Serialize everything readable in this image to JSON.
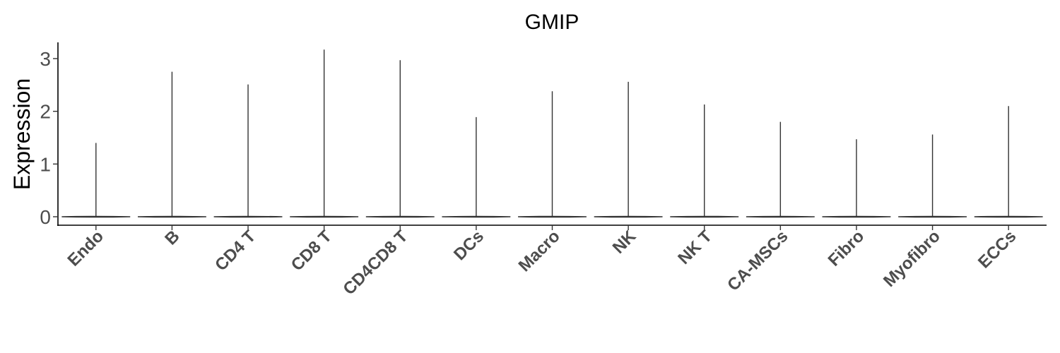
{
  "chart_data": {
    "type": "violin",
    "title": "GMIP",
    "xlabel": "",
    "ylabel": "Expression",
    "ylim": [
      -0.15,
      3.3
    ],
    "yticks": [
      0,
      1,
      2,
      3
    ],
    "categories": [
      "Endo",
      "B",
      "CD4 T",
      "CD8 T",
      "CD4CD8 T",
      "DCs",
      "Macro",
      "NK",
      "NK T",
      "CA-MSCs",
      "Fibro",
      "Myofibro",
      "ECCs"
    ],
    "series": [
      {
        "min": [
          0,
          0,
          0,
          0,
          0,
          0,
          0,
          0,
          0,
          0,
          0,
          0,
          0
        ],
        "max": [
          1.4,
          2.75,
          2.51,
          3.17,
          2.97,
          1.89,
          2.38,
          2.56,
          2.13,
          1.8,
          1.47,
          1.56,
          2.1
        ]
      }
    ],
    "grid": false,
    "legend": "none",
    "colors": {
      "violin_outline": "#333333",
      "axis": "#000000",
      "tick_label": "#4d4d4d"
    }
  }
}
